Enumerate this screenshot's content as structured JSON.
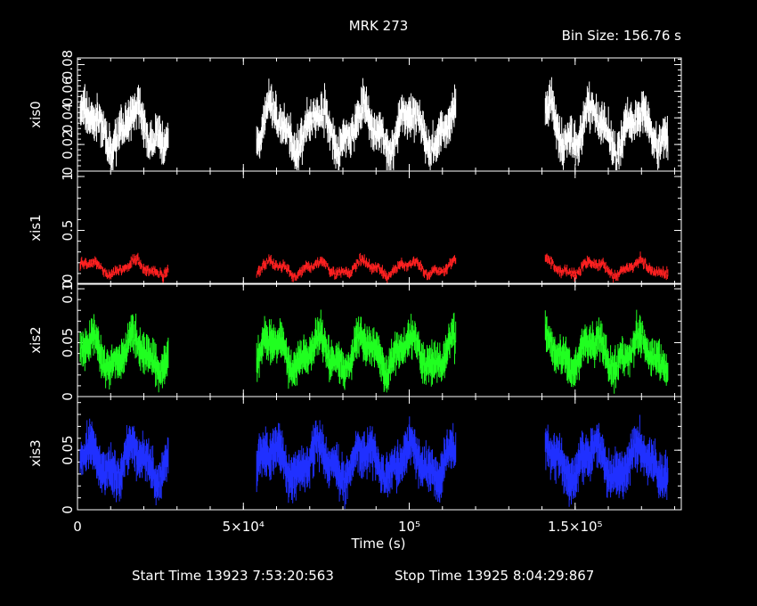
{
  "chart_data": {
    "type": "line",
    "title": "MRK 273",
    "bin_size_label": "Bin Size: 156.76 s",
    "xlabel": "Time (s)",
    "xlim": [
      0,
      182000
    ],
    "x_ticks": [
      {
        "value": 0,
        "label": "0"
      },
      {
        "value": 50000,
        "label": "5×10⁴"
      },
      {
        "value": 100000,
        "label": "10⁵"
      },
      {
        "value": 150000,
        "label": "1.5×10⁵"
      }
    ],
    "segments": [
      [
        800,
        27500
      ],
      [
        54000,
        114000
      ],
      [
        141000,
        178000
      ]
    ],
    "panels": [
      {
        "name": "xis0",
        "color": "#ffffff",
        "ylim": [
          0,
          0.085
        ],
        "ticks": [
          {
            "v": 0,
            "label": "0"
          },
          {
            "v": 0.02,
            "label": "0.02"
          },
          {
            "v": 0.04,
            "label": "0.04"
          },
          {
            "v": 0.06,
            "label": "0.06"
          },
          {
            "v": 0.08,
            "label": "0.08"
          }
        ],
        "base": 0.032,
        "amp": 0.022,
        "err": 0.009
      },
      {
        "name": "xis1",
        "color": "#ff2020",
        "ylim": [
          0,
          1.05
        ],
        "ticks": [
          {
            "v": 0,
            "label": "0"
          },
          {
            "v": 0.5,
            "label": "0.5"
          },
          {
            "v": 1,
            "label": "1"
          }
        ],
        "base": 0.15,
        "amp": 0.09,
        "err": 0.025
      },
      {
        "name": "xis2",
        "color": "#20ff20",
        "ylim": [
          0,
          0.105
        ],
        "ticks": [
          {
            "v": 0,
            "label": "0"
          },
          {
            "v": 0.05,
            "label": "0.05"
          },
          {
            "v": 0.1,
            "label": "0.10"
          }
        ],
        "base": 0.04,
        "amp": 0.022,
        "err": 0.011
      },
      {
        "name": "xis3",
        "color": "#2030ff",
        "ylim": [
          0,
          0.095
        ],
        "ticks": [
          {
            "v": 0,
            "label": "0"
          },
          {
            "v": 0.05,
            "label": "0.05"
          }
        ],
        "base": 0.04,
        "amp": 0.02,
        "err": 0.012
      }
    ],
    "grid": false,
    "legend": "none"
  },
  "footer": {
    "start_time": "Start Time 13923  7:53:20:563",
    "stop_time": "Stop Time 13925  8:04:29:867"
  }
}
